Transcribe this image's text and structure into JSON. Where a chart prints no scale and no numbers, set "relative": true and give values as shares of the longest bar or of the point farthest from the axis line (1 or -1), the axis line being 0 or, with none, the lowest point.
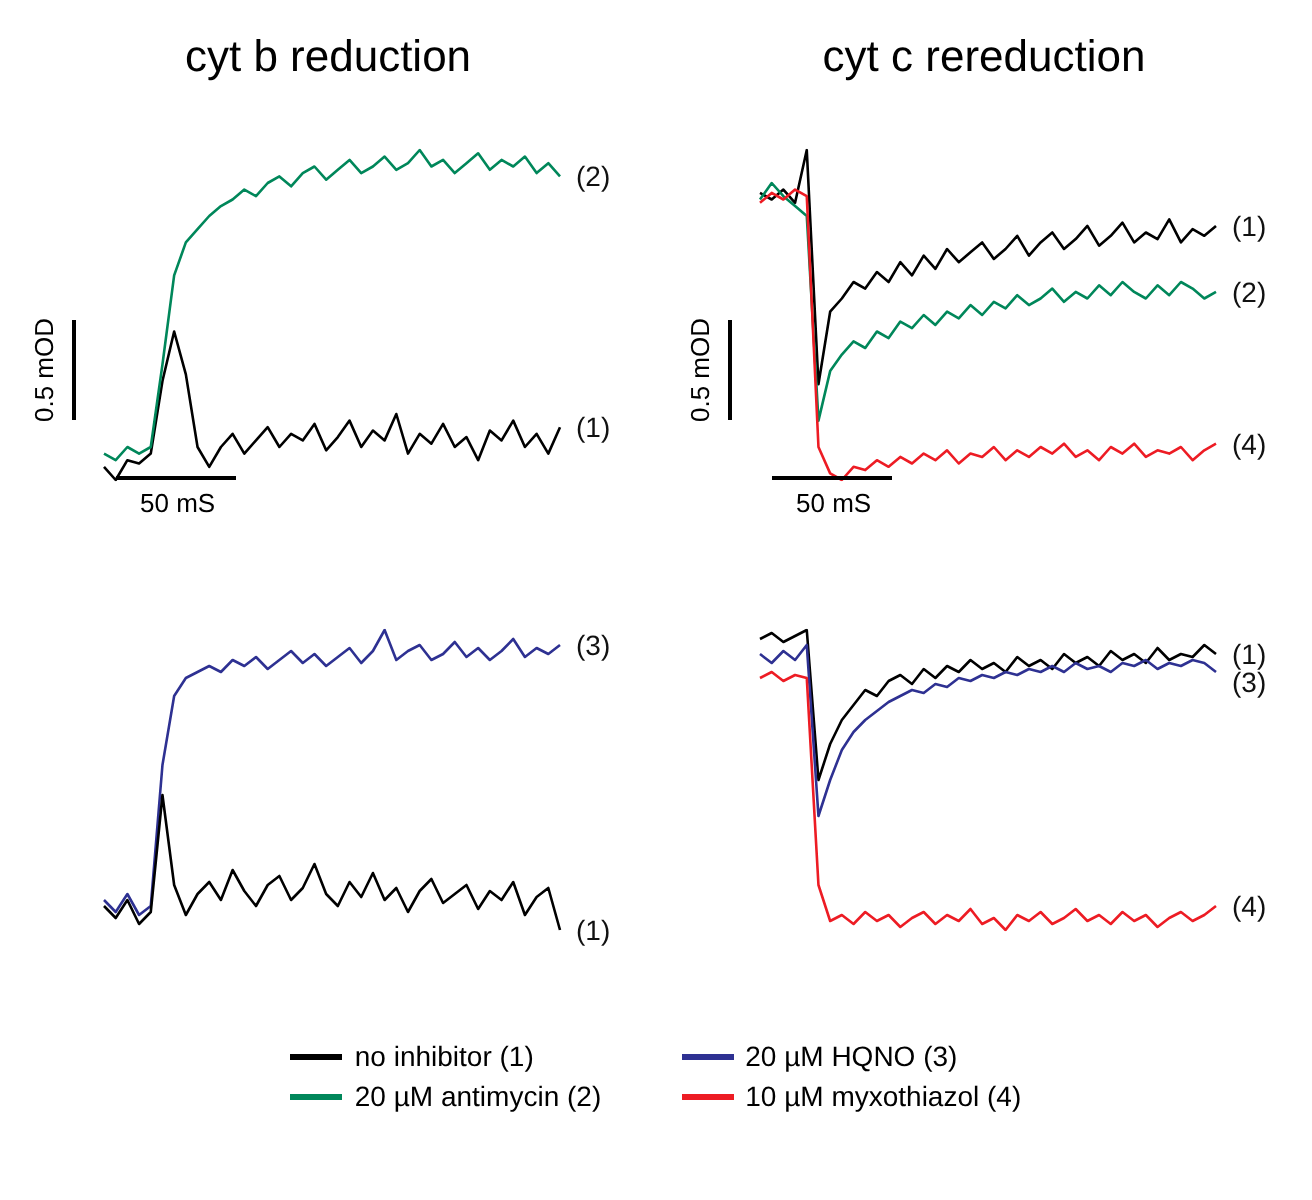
{
  "chart_data": [
    {
      "type": "line",
      "title": "cyt b reduction",
      "relative": true,
      "annotations": [
        "0.5 mOD",
        "50 mS"
      ],
      "categories": [
        null,
        null,
        null,
        null,
        null,
        null,
        null,
        null,
        null,
        null,
        null,
        null,
        null,
        null,
        null,
        null,
        null,
        null,
        null,
        null,
        null,
        null,
        null,
        null,
        null,
        null,
        null,
        null,
        null,
        null,
        null,
        null,
        null,
        null,
        null,
        null,
        null,
        null,
        null,
        null
      ],
      "series": [
        {
          "name": "(1)",
          "color": "#000000",
          "values": [
            0.04,
            0,
            0.06,
            0.05,
            0.08,
            0.3,
            0.45,
            0.32,
            0.1,
            0.04,
            0.1,
            0.14,
            0.08,
            0.12,
            0.16,
            0.1,
            0.14,
            0.12,
            0.17,
            0.09,
            0.13,
            0.18,
            0.1,
            0.15,
            0.12,
            0.2,
            0.08,
            0.14,
            0.11,
            0.17,
            0.1,
            0.13,
            0.06,
            0.15,
            0.12,
            0.18,
            0.1,
            0.14,
            0.08,
            0.16
          ]
        },
        {
          "name": "(2)",
          "color": "#00875a",
          "values": [
            0.08,
            0.06,
            0.1,
            0.08,
            0.1,
            0.35,
            0.62,
            0.72,
            0.76,
            0.8,
            0.83,
            0.85,
            0.88,
            0.86,
            0.9,
            0.92,
            0.89,
            0.93,
            0.95,
            0.91,
            0.94,
            0.97,
            0.93,
            0.95,
            0.98,
            0.94,
            0.96,
            1.0,
            0.95,
            0.97,
            0.93,
            0.96,
            0.99,
            0.94,
            0.97,
            0.95,
            0.98,
            0.93,
            0.96,
            0.92
          ]
        }
      ]
    },
    {
      "type": "line",
      "title": "cyt c rereduction",
      "relative": true,
      "annotations": [
        "0.5 mOD",
        "50 mS"
      ],
      "categories": [
        null,
        null,
        null,
        null,
        null,
        null,
        null,
        null,
        null,
        null,
        null,
        null,
        null,
        null,
        null,
        null,
        null,
        null,
        null,
        null,
        null,
        null,
        null,
        null,
        null,
        null,
        null,
        null,
        null,
        null,
        null,
        null,
        null,
        null,
        null,
        null,
        null,
        null,
        null,
        null
      ],
      "series": [
        {
          "name": "(1)",
          "color": "#000000",
          "values": [
            0.87,
            0.85,
            0.88,
            0.84,
            1.0,
            0.29,
            0.51,
            0.55,
            0.6,
            0.58,
            0.63,
            0.6,
            0.66,
            0.62,
            0.68,
            0.64,
            0.7,
            0.66,
            0.69,
            0.72,
            0.67,
            0.7,
            0.74,
            0.68,
            0.72,
            0.75,
            0.7,
            0.73,
            0.77,
            0.71,
            0.74,
            0.78,
            0.72,
            0.75,
            0.73,
            0.79,
            0.72,
            0.76,
            0.74,
            0.77
          ]
        },
        {
          "name": "(2)",
          "color": "#00875a",
          "values": [
            0.85,
            0.9,
            0.86,
            0.83,
            0.8,
            0.18,
            0.33,
            0.38,
            0.42,
            0.4,
            0.45,
            0.43,
            0.48,
            0.46,
            0.5,
            0.47,
            0.51,
            0.49,
            0.53,
            0.5,
            0.54,
            0.52,
            0.56,
            0.53,
            0.55,
            0.58,
            0.54,
            0.57,
            0.55,
            0.59,
            0.56,
            0.6,
            0.57,
            0.55,
            0.59,
            0.56,
            0.6,
            0.58,
            0.55,
            0.57
          ]
        },
        {
          "name": "(4)",
          "color": "#ed1c24",
          "values": [
            0.84,
            0.87,
            0.85,
            0.88,
            0.86,
            0.1,
            0.02,
            0,
            0.04,
            0.03,
            0.06,
            0.04,
            0.07,
            0.05,
            0.08,
            0.06,
            0.09,
            0.05,
            0.08,
            0.07,
            0.1,
            0.06,
            0.09,
            0.07,
            0.1,
            0.08,
            0.11,
            0.07,
            0.09,
            0.06,
            0.1,
            0.08,
            0.11,
            0.07,
            0.09,
            0.08,
            0.1,
            0.06,
            0.09,
            0.11
          ]
        }
      ]
    },
    {
      "type": "line",
      "relative": true,
      "categories": [
        null,
        null,
        null,
        null,
        null,
        null,
        null,
        null,
        null,
        null,
        null,
        null,
        null,
        null,
        null,
        null,
        null,
        null,
        null,
        null,
        null,
        null,
        null,
        null,
        null,
        null,
        null,
        null,
        null,
        null,
        null,
        null,
        null,
        null,
        null,
        null,
        null,
        null,
        null,
        null
      ],
      "series": [
        {
          "name": "(3)",
          "color": "#2e3192",
          "values": [
            0.1,
            0.06,
            0.12,
            0.05,
            0.08,
            0.55,
            0.78,
            0.84,
            0.86,
            0.88,
            0.86,
            0.9,
            0.88,
            0.91,
            0.87,
            0.9,
            0.93,
            0.89,
            0.92,
            0.88,
            0.91,
            0.94,
            0.89,
            0.93,
            1.0,
            0.9,
            0.93,
            0.95,
            0.9,
            0.92,
            0.96,
            0.91,
            0.94,
            0.9,
            0.93,
            0.97,
            0.91,
            0.94,
            0.92,
            0.95
          ]
        },
        {
          "name": "(1)",
          "color": "#000000",
          "values": [
            0.08,
            0.04,
            0.1,
            0.02,
            0.06,
            0.45,
            0.15,
            0.05,
            0.12,
            0.16,
            0.1,
            0.2,
            0.13,
            0.08,
            0.15,
            0.18,
            0.1,
            0.14,
            0.22,
            0.12,
            0.08,
            0.16,
            0.11,
            0.19,
            0.1,
            0.14,
            0.06,
            0.13,
            0.17,
            0.09,
            0.12,
            0.15,
            0.07,
            0.13,
            0.1,
            0.16,
            0.05,
            0.11,
            0.14,
            0
          ]
        }
      ]
    },
    {
      "type": "line",
      "relative": true,
      "categories": [
        null,
        null,
        null,
        null,
        null,
        null,
        null,
        null,
        null,
        null,
        null,
        null,
        null,
        null,
        null,
        null,
        null,
        null,
        null,
        null,
        null,
        null,
        null,
        null,
        null,
        null,
        null,
        null,
        null,
        null,
        null,
        null,
        null,
        null,
        null,
        null,
        null,
        null,
        null,
        null
      ],
      "series": [
        {
          "name": "(1)",
          "color": "#000000",
          "values": [
            0.97,
            0.99,
            0.96,
            0.98,
            1.0,
            0.5,
            0.62,
            0.7,
            0.75,
            0.8,
            0.78,
            0.83,
            0.85,
            0.82,
            0.87,
            0.84,
            0.88,
            0.86,
            0.9,
            0.87,
            0.89,
            0.86,
            0.91,
            0.88,
            0.9,
            0.87,
            0.92,
            0.89,
            0.91,
            0.88,
            0.93,
            0.9,
            0.92,
            0.89,
            0.94,
            0.9,
            0.92,
            0.91,
            0.95,
            0.92
          ]
        },
        {
          "name": "(3)",
          "color": "#2e3192",
          "values": [
            0.92,
            0.89,
            0.93,
            0.9,
            0.95,
            0.38,
            0.5,
            0.6,
            0.66,
            0.7,
            0.73,
            0.76,
            0.78,
            0.8,
            0.79,
            0.82,
            0.81,
            0.84,
            0.83,
            0.85,
            0.84,
            0.86,
            0.85,
            0.87,
            0.86,
            0.88,
            0.86,
            0.89,
            0.87,
            0.88,
            0.86,
            0.89,
            0.88,
            0.9,
            0.87,
            0.89,
            0.88,
            0.9,
            0.89,
            0.86
          ]
        },
        {
          "name": "(4)",
          "color": "#ed1c24",
          "values": [
            0.84,
            0.86,
            0.83,
            0.85,
            0.84,
            0.15,
            0.03,
            0.05,
            0.02,
            0.06,
            0.03,
            0.05,
            0.01,
            0.04,
            0.06,
            0.02,
            0.05,
            0.03,
            0.07,
            0.02,
            0.04,
            0,
            0.05,
            0.03,
            0.06,
            0.02,
            0.04,
            0.07,
            0.03,
            0.05,
            0.02,
            0.06,
            0.03,
            0.05,
            0.01,
            0.04,
            0.06,
            0.03,
            0.05,
            0.08
          ]
        }
      ]
    },
    {
      "type": "other",
      "annotations": [
        "no inhibitor (1)",
        "20 µM antimycin (2)",
        "20 µM HQNO (3)",
        "10 µM myxothiazol (4)"
      ]
    }
  ]
}
